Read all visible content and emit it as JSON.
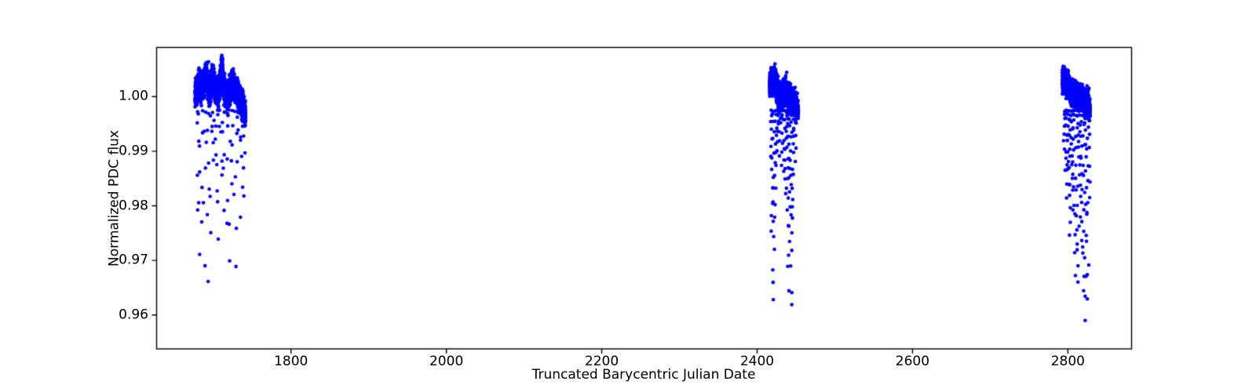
{
  "chart_data": {
    "type": "scatter",
    "title": "",
    "xlabel": "Truncated Barycentric Julian Date",
    "ylabel": "Normalized PDC flux",
    "xlim": [
      1627,
      2882
    ],
    "ylim": [
      0.9538,
      1.009
    ],
    "xticks": {
      "values": [
        1800,
        2000,
        2200,
        2400,
        2600,
        2800
      ],
      "labels": [
        "1800",
        "2000",
        "2200",
        "2400",
        "2600",
        "2800"
      ]
    },
    "yticks": {
      "values": [
        0.96,
        0.97,
        0.98,
        0.99,
        1.0
      ],
      "labels": [
        "0.96",
        "0.97",
        "0.98",
        "0.99",
        "1.00"
      ]
    },
    "grid": false,
    "legend": null,
    "axes_color": "#000000",
    "marker": {
      "shape": "circle",
      "color": "#0000ff",
      "radius_px": 2.3
    },
    "description": "Normalized PDC light curve with three observation epochs; dense baseline near flux 1.000 and transit dips reaching ~0.957",
    "clusters": [
      {
        "name": "epoch-1",
        "x_range": [
          1676.5,
          1741.5
        ],
        "baseline_flux_range": [
          0.996,
          1.007
        ],
        "min_flux": 0.958,
        "baseline": {
          "n_points": 3600,
          "profile": [
            [
              1676.5,
              1.0004,
              0.0011
            ],
            [
              1679,
              1.0013,
              0.0012
            ],
            [
              1681.5,
              1.0024,
              0.0011
            ],
            [
              1684,
              1.0012,
              0.0011
            ],
            [
              1686.5,
              1.0022,
              0.0011
            ],
            [
              1689,
              1.003,
              0.0011
            ],
            [
              1691,
              1.004,
              0.001
            ],
            [
              1693,
              1.0018,
              0.0011
            ],
            [
              1695.5,
              1.0008,
              0.0011
            ],
            [
              1698,
              1.0026,
              0.0012
            ],
            [
              1700.5,
              1.0028,
              0.0011
            ],
            [
              1703,
              1.001,
              0.001
            ],
            [
              1705.5,
              1.0006,
              0.001
            ],
            [
              1708,
              1.0018,
              0.0011
            ],
            [
              1710,
              1.004,
              0.0011
            ],
            [
              1711.5,
              1.0055,
              0.001
            ],
            [
              1713,
              1.002,
              0.0011
            ],
            [
              1715.5,
              1.0006,
              0.0011
            ],
            [
              1718,
              1.0,
              0.0012
            ],
            [
              1720.5,
              1.0008,
              0.0012
            ],
            [
              1723,
              1.0016,
              0.0011
            ],
            [
              1725.5,
              1.0026,
              0.0011
            ],
            [
              1728,
              1.0014,
              0.0011
            ],
            [
              1730.5,
              1.0004,
              0.0011
            ],
            [
              1733,
              0.9999,
              0.0011
            ],
            [
              1735.5,
              0.9992,
              0.0011
            ],
            [
              1738,
              0.9983,
              0.0011
            ],
            [
              1740,
              0.9974,
              0.001
            ],
            [
              1741.5,
              0.9966,
              0.001
            ]
          ]
        },
        "dips": {
          "x_jitter": 1.6,
          "y_max": 0.9975,
          "columns": [
            [
              1679,
              5,
              0.972
            ],
            [
              1682.5,
              5,
              0.964
            ],
            [
              1686,
              5,
              0.959
            ],
            [
              1689.5,
              5,
              0.976
            ],
            [
              1693,
              5,
              0.958
            ],
            [
              1696.5,
              5,
              0.97
            ],
            [
              1700,
              5,
              0.987
            ],
            [
              1703.5,
              5,
              0.979
            ],
            [
              1707,
              5,
              0.968
            ],
            [
              1710.5,
              5,
              0.982
            ],
            [
              1714,
              5,
              0.975
            ],
            [
              1717.5,
              5,
              0.97
            ],
            [
              1721,
              5,
              0.961
            ],
            [
              1724.5,
              5,
              0.978
            ],
            [
              1728,
              5,
              0.961
            ],
            [
              1731.5,
              5,
              0.986
            ],
            [
              1735,
              6,
              0.975
            ],
            [
              1738.5,
              6,
              0.979
            ]
          ]
        }
      },
      {
        "name": "epoch-2",
        "x_range": [
          2416,
          2453
        ],
        "baseline_flux_range": [
          0.9975,
          1.0044
        ],
        "min_flux": 0.959,
        "baseline": {
          "n_points": 2000,
          "profile": [
            [
              2416,
              1.0016,
              0.0011
            ],
            [
              2417.5,
              1.003,
              0.001
            ],
            [
              2419,
              1.0034,
              0.001
            ],
            [
              2420.5,
              1.002,
              0.0011
            ],
            [
              2422,
              1.003,
              0.001
            ],
            [
              2423.5,
              1.0034,
              0.001
            ],
            [
              2425,
              1.0016,
              0.0011
            ],
            [
              2427,
              1.0004,
              0.0011
            ],
            [
              2429.5,
              0.9998,
              0.0011
            ],
            [
              2432,
              1.0004,
              0.0011
            ],
            [
              2434.5,
              1.0006,
              0.001
            ],
            [
              2437,
              1.0012,
              0.001
            ],
            [
              2439.5,
              1.0,
              0.001
            ],
            [
              2442,
              0.9998,
              0.001
            ],
            [
              2444.5,
              0.9994,
              0.001
            ],
            [
              2447,
              0.999,
              0.001
            ],
            [
              2449.5,
              0.9985,
              0.001
            ],
            [
              2451.5,
              0.998,
              0.001
            ],
            [
              2453,
              0.9974,
              0.001
            ]
          ]
        },
        "dips": {
          "x_jitter": 0.9,
          "y_max": 0.9975,
          "columns": [
            [
              2418.5,
              12,
              0.974
            ],
            [
              2421,
              16,
              0.9595
            ],
            [
              2423.5,
              12,
              0.9765
            ],
            [
              2426,
              7,
              0.9855
            ],
            [
              2428.5,
              6,
              0.988
            ],
            [
              2431,
              7,
              0.986
            ],
            [
              2434,
              8,
              0.984
            ],
            [
              2436.5,
              10,
              0.98
            ],
            [
              2439,
              14,
              0.975
            ],
            [
              2441.5,
              16,
              0.963
            ],
            [
              2444,
              16,
              0.959
            ],
            [
              2446.5,
              12,
              0.976
            ],
            [
              2449,
              7,
              0.987
            ]
          ]
        }
      },
      {
        "name": "epoch-3",
        "x_range": [
          2793,
          2828.5
        ],
        "baseline_flux_range": [
          0.9977,
          1.0038
        ],
        "min_flux": 0.957,
        "baseline": {
          "n_points": 2000,
          "profile": [
            [
              2793,
              1.0024,
              0.001
            ],
            [
              2794.5,
              1.0032,
              0.001
            ],
            [
              2796,
              1.0028,
              0.001
            ],
            [
              2798,
              1.002,
              0.001
            ],
            [
              2800,
              1.0026,
              0.001
            ],
            [
              2802,
              1.0016,
              0.001
            ],
            [
              2804,
              1.0008,
              0.001
            ],
            [
              2806.5,
              1.0002,
              0.001
            ],
            [
              2809,
              1.0006,
              0.001
            ],
            [
              2811.5,
              1.0002,
              0.001
            ],
            [
              2814,
              0.9998,
              0.001
            ],
            [
              2816.5,
              1.0002,
              0.001
            ],
            [
              2819,
              0.9997,
              0.001
            ],
            [
              2821.5,
              0.9994,
              0.001
            ],
            [
              2824,
              0.999,
              0.001
            ],
            [
              2826,
              0.9985,
              0.001
            ],
            [
              2828.5,
              0.9977,
              0.001
            ]
          ]
        },
        "dips": {
          "x_jitter": 0.8,
          "y_max": 0.9975,
          "columns": [
            [
              2795.5,
              9,
              0.985
            ],
            [
              2798,
              11,
              0.98
            ],
            [
              2800.5,
              10,
              0.983
            ],
            [
              2803,
              13,
              0.972
            ],
            [
              2805.5,
              11,
              0.978
            ],
            [
              2808,
              13,
              0.97
            ],
            [
              2810.5,
              12,
              0.9655
            ],
            [
              2813,
              13,
              0.9625
            ],
            [
              2815.5,
              10,
              0.976
            ],
            [
              2818,
              12,
              0.968
            ],
            [
              2820.5,
              13,
              0.9605
            ],
            [
              2823,
              15,
              0.9572
            ],
            [
              2825.5,
              13,
              0.959
            ],
            [
              2827.5,
              7,
              0.978
            ]
          ]
        }
      }
    ]
  }
}
